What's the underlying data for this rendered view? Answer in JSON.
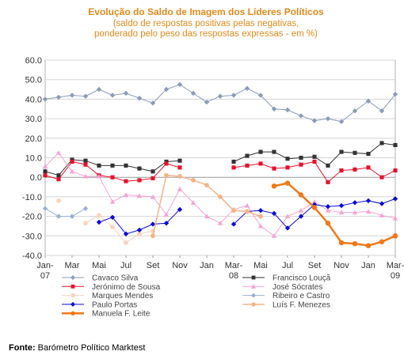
{
  "chart_data": {
    "type": "line",
    "title": "Evolução do Saldo  de Imagem dos Líderes Políticos",
    "subtitle_lines": [
      "(saldo de respostas positivas pelas negativas,",
      "ponderado pelo peso das respostas expressas - em %)"
    ],
    "ylim": [
      -40,
      60
    ],
    "yticks": [
      "60.0",
      "50.0",
      "40.0",
      "30.0",
      "20.0",
      "10.0",
      "0.0",
      "-10.0",
      "-20.0",
      "-30.0",
      "-40.0"
    ],
    "ytick_values": [
      60,
      50,
      40,
      30,
      20,
      10,
      0,
      -10,
      -20,
      -30,
      -40
    ],
    "x_months": [
      "2007-01",
      "2007-02",
      "2007-03",
      "2007-04",
      "2007-05",
      "2007-06",
      "2007-07",
      "2007-08",
      "2007-09",
      "2007-10",
      "2007-11",
      "2007-12",
      "2008-01",
      "2008-02",
      "2008-03",
      "2008-04",
      "2008-05",
      "2008-06",
      "2008-07",
      "2008-08",
      "2008-09",
      "2008-10",
      "2008-11",
      "2008-12",
      "2009-01",
      "2009-02",
      "2009-03"
    ],
    "xtick_labels": [
      {
        "month": "2007-01",
        "text": "Jan-",
        "text2": "07"
      },
      {
        "month": "2007-03",
        "text": "Mar",
        "text2": ""
      },
      {
        "month": "2007-05",
        "text": "Mai",
        "text2": ""
      },
      {
        "month": "2007-07",
        "text": "Jul",
        "text2": ""
      },
      {
        "month": "2007-09",
        "text": "Set",
        "text2": ""
      },
      {
        "month": "2007-11",
        "text": "Nov",
        "text2": ""
      },
      {
        "month": "2008-01",
        "text": "Jan",
        "text2": ""
      },
      {
        "month": "2008-03",
        "text": "Mar-",
        "text2": "08"
      },
      {
        "month": "2008-05",
        "text": "Mai",
        "text2": ""
      },
      {
        "month": "2008-07",
        "text": "Jul",
        "text2": ""
      },
      {
        "month": "2008-09",
        "text": "Set",
        "text2": ""
      },
      {
        "month": "2008-11",
        "text": "Nov",
        "text2": ""
      },
      {
        "month": "2009-01",
        "text": "Jan",
        "text2": ""
      },
      {
        "month": "2009-03",
        "text": "Mar-",
        "text2": "09"
      }
    ],
    "grid": true,
    "legend_placement": "bottom",
    "series": [
      {
        "name": "Cavaco Silva",
        "color": "#8a9bb8",
        "marker": "diamond",
        "width": 1,
        "values": [
          40,
          41,
          42,
          41.5,
          45,
          42,
          43,
          40.5,
          38,
          45,
          47.5,
          43,
          38.5,
          41.5,
          42,
          45.5,
          42,
          35,
          34.5,
          31.5,
          29,
          30,
          28.5,
          34,
          39,
          34,
          42.5
        ]
      },
      {
        "name": "Francisco Louçã",
        "color": "#333333",
        "marker": "square",
        "width": 1,
        "values": [
          3,
          1,
          9,
          8.5,
          6,
          6,
          6,
          4.5,
          3,
          8,
          8.5,
          null,
          null,
          null,
          8,
          11,
          13,
          13,
          9.5,
          10,
          10.5,
          6,
          13,
          12.5,
          12,
          17.5,
          16.5
        ]
      },
      {
        "name": "Jerónimo de Sousa",
        "color": "#e8102a",
        "marker": "square",
        "width": 1,
        "values": [
          1,
          -1,
          8,
          6.5,
          1,
          0,
          -2,
          -1.5,
          -0.5,
          7,
          5,
          null,
          null,
          null,
          5,
          6,
          7,
          4.5,
          5,
          6.5,
          8,
          -2.5,
          3.5,
          4,
          5,
          0,
          3.5
        ]
      },
      {
        "name": "José Sócrates",
        "color": "#f6a2d4",
        "marker": "triangle",
        "width": 1,
        "values": [
          5.5,
          12.5,
          3,
          0.5,
          0.5,
          -12.5,
          -9,
          -9.5,
          -10,
          -19,
          -6,
          -13,
          -20,
          -23.5,
          -16.5,
          -14.5,
          -25,
          -30,
          -20,
          -17,
          -12.5,
          -17,
          -18,
          -18,
          -17.5,
          -19.5,
          -21
        ]
      },
      {
        "name": "Marques Mendes",
        "color": "#f8d3bd",
        "marker": "circle",
        "width": 1,
        "values": [
          null,
          -12,
          null,
          -23.5,
          -19.5,
          -25.5,
          -33.5,
          -29,
          -27.5,
          null,
          null,
          null,
          null,
          null,
          null,
          null,
          null,
          null,
          null,
          null,
          null,
          null,
          null,
          null,
          null,
          null,
          null
        ]
      },
      {
        "name": "Ribeiro e Castro",
        "color": "#9ab0d2",
        "marker": "diamond",
        "width": 1,
        "values": [
          -16,
          -20,
          -20,
          -16,
          null,
          null,
          null,
          null,
          null,
          null,
          null,
          null,
          null,
          null,
          null,
          null,
          null,
          null,
          null,
          null,
          null,
          null,
          null,
          null,
          null,
          null,
          null
        ]
      },
      {
        "name": "Paulo Portas",
        "color": "#0a0ad8",
        "marker": "diamond",
        "width": 1,
        "values": [
          null,
          null,
          null,
          null,
          -23,
          -20.5,
          -29,
          -27,
          -24,
          -23.5,
          -16.5,
          null,
          null,
          null,
          -24,
          -17.5,
          -17,
          -18.5,
          -26,
          -20,
          -14,
          -15,
          -14.5,
          -13,
          -12,
          -13.5,
          -11
        ]
      },
      {
        "name": "Luís F. Menezes",
        "color": "#f4b385",
        "marker": "circle",
        "width": 1.5,
        "values": [
          null,
          null,
          null,
          null,
          null,
          null,
          null,
          null,
          -30,
          1,
          0.5,
          -1.5,
          -4,
          -10,
          -17,
          -17.5,
          -20,
          null,
          null,
          null,
          null,
          null,
          null,
          null,
          null,
          null,
          null
        ]
      },
      {
        "name": "Manuela F. Leite",
        "color": "#f07818",
        "marker": "circle",
        "width": 2.5,
        "values": [
          null,
          null,
          null,
          null,
          null,
          null,
          null,
          null,
          null,
          null,
          null,
          null,
          null,
          null,
          null,
          null,
          null,
          -4.5,
          -3,
          -9,
          -15.5,
          -23.5,
          -33.5,
          -34,
          -35,
          -33,
          -30
        ]
      }
    ]
  },
  "source": {
    "label": "Fonte:",
    "text": " Barómetro Político Marktest"
  }
}
